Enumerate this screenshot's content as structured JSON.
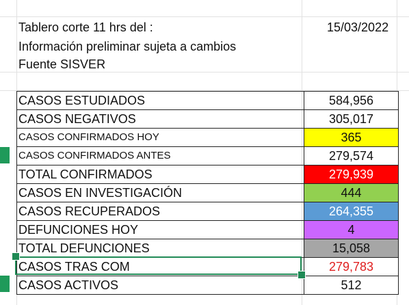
{
  "header": {
    "title_line": "Tablero corte 11 hrs del :",
    "date": "15/03/2022",
    "disclaimer": "Información preliminar sujeta a cambios",
    "source": "Fuente SISVER"
  },
  "rows": [
    {
      "label": "CASOS ESTUDIADOS",
      "value": "584,956",
      "bg": "#ffffff",
      "color": "#111111"
    },
    {
      "label": "CASOS NEGATIVOS",
      "value": "305,017",
      "bg": "#ffffff",
      "color": "#111111"
    },
    {
      "label": "CASOS CONFIRMADOS HOY",
      "value": "365",
      "bg": "#ffff00",
      "color": "#111111"
    },
    {
      "label": "CASOS CONFIRMADOS ANTES",
      "value": "279,574",
      "bg": "#ffffff",
      "color": "#111111"
    },
    {
      "label": "TOTAL CONFIRMADOS",
      "value": "279,939",
      "bg": "#ff0000",
      "color": "#ffffff"
    },
    {
      "label": "CASOS EN INVESTIGACIÓN",
      "value": "444",
      "bg": "#92d050",
      "color": "#111111"
    },
    {
      "label": "CASOS RECUPERADOS",
      "value": "264,355",
      "bg": "#5b9bd5",
      "color": "#ffffff"
    },
    {
      "label": "DEFUNCIONES HOY",
      "value": "4",
      "bg": "#cc66ff",
      "color": "#111111"
    },
    {
      "label": "TOTAL DEFUNCIONES",
      "value": "15,058",
      "bg": "#a6a6a6",
      "color": "#111111"
    },
    {
      "label": "CASOS TRAS COM",
      "value": "279,783",
      "bg": "#ffffff",
      "color": "#e02020"
    },
    {
      "label": "CASOS ACTIVOS",
      "value": "512",
      "bg": "#ffffff",
      "color": "#111111"
    }
  ],
  "colors": {
    "selection": "#1f8a55",
    "gridline": "#e1e1e1"
  }
}
